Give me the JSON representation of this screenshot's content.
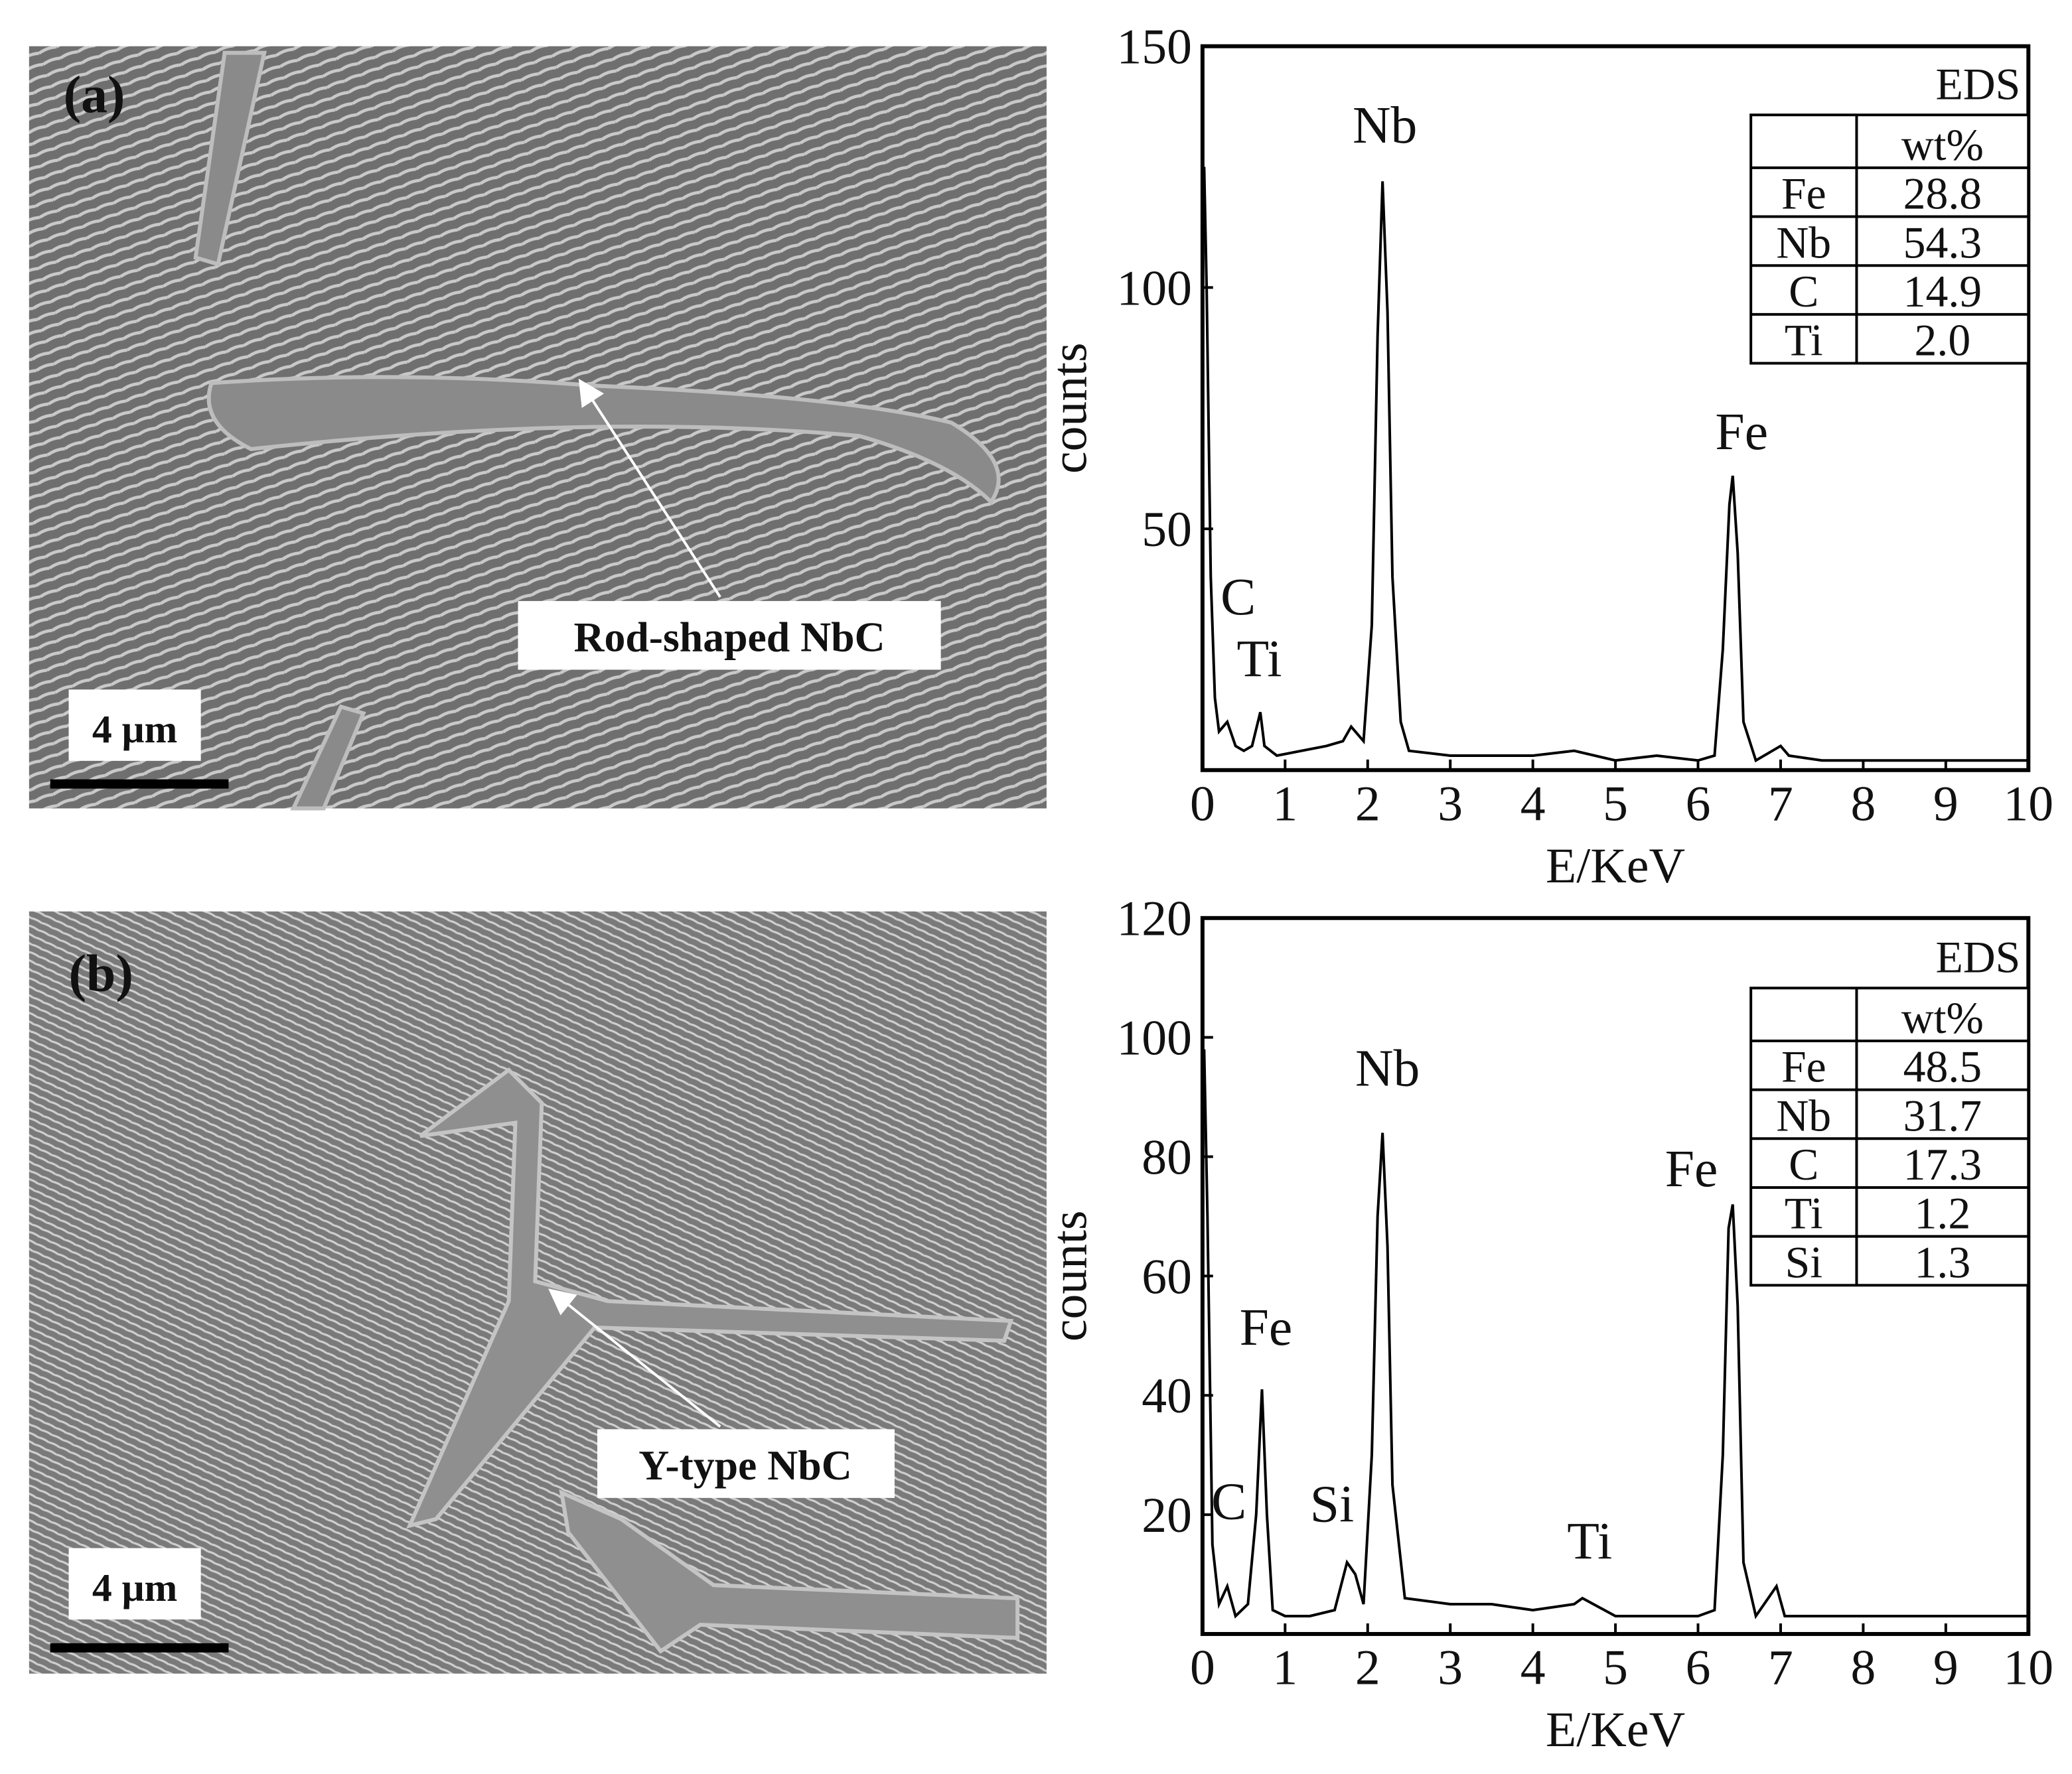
{
  "panels": [
    {
      "label": "(a)",
      "annotation": "Rod-shaped NbC",
      "scale_bar": "4 μm"
    },
    {
      "label": "(b)",
      "annotation": "Y-type NbC",
      "scale_bar": "4 μm"
    }
  ],
  "chart_data": [
    {
      "type": "line",
      "xlabel": "E/KeV",
      "ylabel": "counts",
      "xlim": [
        0,
        10
      ],
      "ylim": [
        0,
        150
      ],
      "xticks": [
        0,
        1,
        2,
        3,
        4,
        5,
        6,
        7,
        8,
        9,
        10
      ],
      "yticks": [
        50,
        100,
        150
      ],
      "x": [
        0.02,
        0.05,
        0.1,
        0.15,
        0.2,
        0.3,
        0.4,
        0.5,
        0.6,
        0.7,
        0.75,
        0.9,
        1.2,
        1.5,
        1.7,
        1.8,
        1.95,
        2.05,
        2.12,
        2.18,
        2.24,
        2.3,
        2.4,
        2.5,
        3,
        3.5,
        4,
        4.5,
        5,
        5.5,
        6,
        6.2,
        6.3,
        6.38,
        6.42,
        6.48,
        6.55,
        6.7,
        7,
        7.1,
        7.5,
        8,
        8.5,
        9,
        9.5,
        10
      ],
      "series": [
        {
          "color": "#000000",
          "values": [
            125,
            100,
            40,
            15,
            8,
            10,
            5,
            4,
            5,
            12,
            5,
            3,
            4,
            5,
            6,
            9,
            6,
            30,
            90,
            122,
            95,
            40,
            10,
            4,
            3,
            3,
            3,
            4,
            2,
            3,
            2,
            3,
            25,
            55,
            61,
            45,
            10,
            2,
            5,
            3,
            2,
            2,
            2,
            2,
            2,
            2
          ]
        }
      ],
      "annotations": [
        "C",
        "Ti",
        "Nb",
        "Fe"
      ],
      "table": {
        "title": "EDS",
        "header": "wt%",
        "rows": [
          [
            "Fe",
            "28.8"
          ],
          [
            "Nb",
            "54.3"
          ],
          [
            "C",
            "14.9"
          ],
          [
            "Ti",
            "2.0"
          ]
        ]
      }
    },
    {
      "type": "line",
      "xlabel": "E/KeV",
      "ylabel": "counts",
      "xlim": [
        0,
        10
      ],
      "ylim": [
        0,
        120
      ],
      "xticks": [
        0,
        1,
        2,
        3,
        4,
        5,
        6,
        7,
        8,
        9,
        10
      ],
      "yticks": [
        20,
        40,
        60,
        80,
        100,
        120
      ],
      "x": [
        0.02,
        0.06,
        0.12,
        0.2,
        0.3,
        0.4,
        0.55,
        0.65,
        0.72,
        0.78,
        0.85,
        1,
        1.3,
        1.6,
        1.75,
        1.85,
        1.95,
        2.05,
        2.12,
        2.18,
        2.24,
        2.3,
        2.45,
        3,
        3.5,
        4,
        4.5,
        4.6,
        5,
        5.5,
        6,
        6.2,
        6.3,
        6.37,
        6.42,
        6.48,
        6.55,
        6.7,
        6.95,
        7.05,
        7.5,
        8,
        8.5,
        9,
        9.5,
        10
      ],
      "series": [
        {
          "color": "#000000",
          "values": [
            98,
            70,
            15,
            5,
            8,
            3,
            5,
            20,
            41,
            20,
            4,
            3,
            3,
            4,
            12,
            10,
            5,
            30,
            70,
            84,
            65,
            25,
            6,
            5,
            5,
            4,
            5,
            6,
            3,
            3,
            3,
            4,
            30,
            68,
            72,
            55,
            12,
            3,
            8,
            3,
            3,
            3,
            3,
            3,
            3,
            3
          ]
        }
      ],
      "annotations": [
        "Fe",
        "C",
        "Si",
        "Nb",
        "Ti",
        "Fe"
      ],
      "table": {
        "title": "EDS",
        "header": "wt%",
        "rows": [
          [
            "Fe",
            "48.5"
          ],
          [
            "Nb",
            "31.7"
          ],
          [
            "C",
            "17.3"
          ],
          [
            "Ti",
            "1.2"
          ],
          [
            "Si",
            "1.3"
          ]
        ]
      }
    }
  ]
}
